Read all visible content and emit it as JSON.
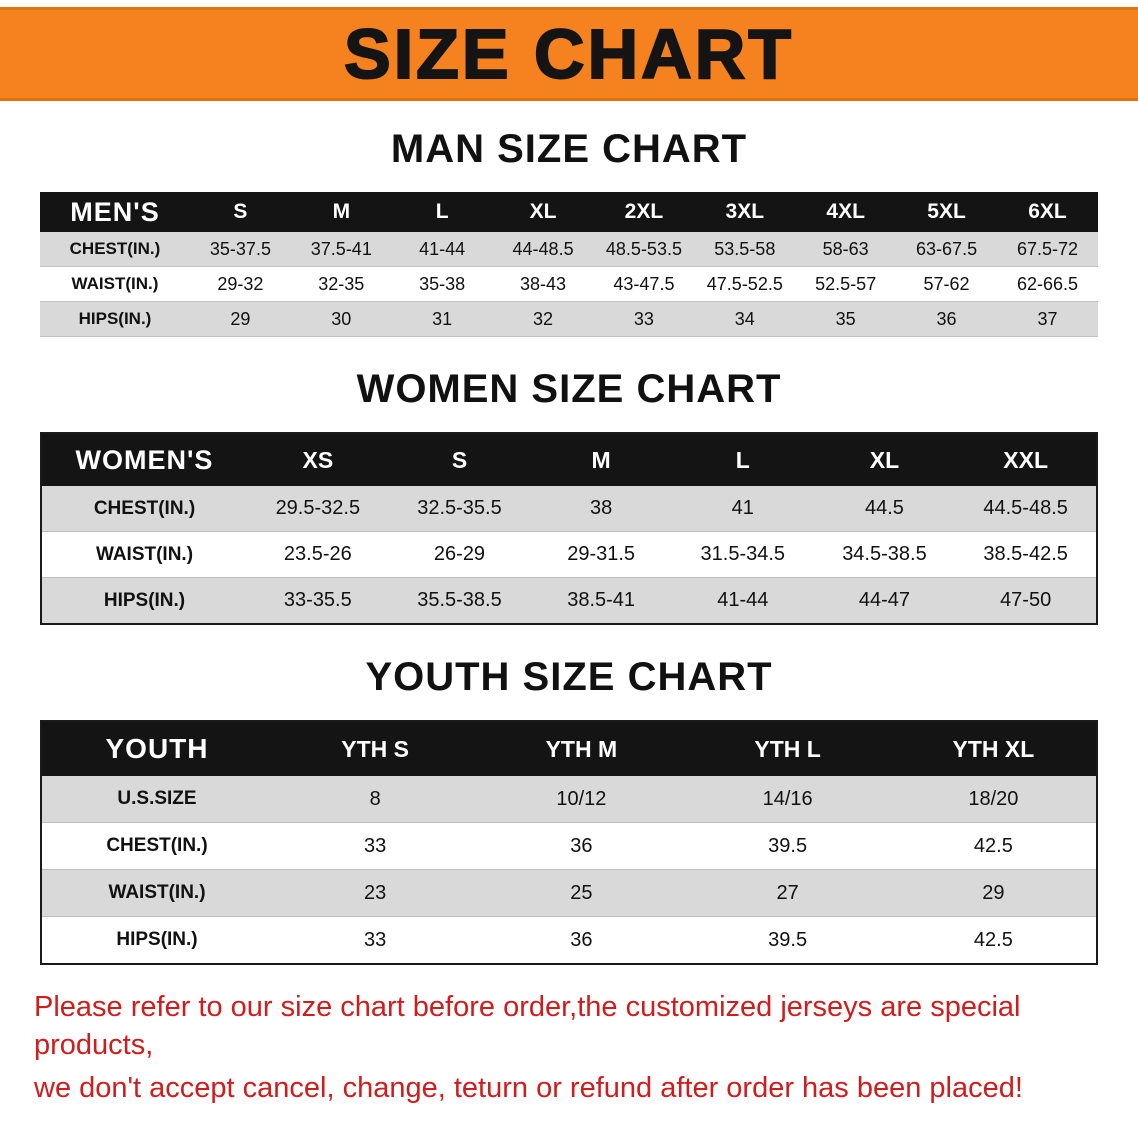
{
  "banner": {
    "title": "SIZE CHART"
  },
  "colors": {
    "banner_bg": "#f5821f",
    "table_header_bg": "#141414",
    "row_gray": "#d9d9d9",
    "notice_red": "#cf1d1d"
  },
  "sections": [
    {
      "heading": "MAN SIZE CHART",
      "table": {
        "corner": "MEN'S",
        "columns": [
          "S",
          "M",
          "L",
          "XL",
          "2XL",
          "3XL",
          "4XL",
          "5XL",
          "6XL"
        ],
        "rows": [
          {
            "label": "CHEST(IN.)",
            "values": [
              "35-37.5",
              "37.5-41",
              "41-44",
              "44-48.5",
              "48.5-53.5",
              "53.5-58",
              "58-63",
              "63-67.5",
              "67.5-72"
            ]
          },
          {
            "label": "WAIST(IN.)",
            "values": [
              "29-32",
              "32-35",
              "35-38",
              "38-43",
              "43-47.5",
              "47.5-52.5",
              "52.5-57",
              "57-62",
              "62-66.5"
            ]
          },
          {
            "label": "HIPS(IN.)",
            "values": [
              "29",
              "30",
              "31",
              "32",
              "33",
              "34",
              "35",
              "36",
              "37"
            ]
          }
        ]
      }
    },
    {
      "heading": "WOMEN SIZE CHART",
      "table": {
        "corner": "WOMEN'S",
        "columns": [
          "XS",
          "S",
          "M",
          "L",
          "XL",
          "XXL"
        ],
        "rows": [
          {
            "label": "CHEST(IN.)",
            "values": [
              "29.5-32.5",
              "32.5-35.5",
              "38",
              "41",
              "44.5",
              "44.5-48.5"
            ]
          },
          {
            "label": "WAIST(IN.)",
            "values": [
              "23.5-26",
              "26-29",
              "29-31.5",
              "31.5-34.5",
              "34.5-38.5",
              "38.5-42.5"
            ]
          },
          {
            "label": "HIPS(IN.)",
            "values": [
              "33-35.5",
              "35.5-38.5",
              "38.5-41",
              "41-44",
              "44-47",
              "47-50"
            ]
          }
        ]
      }
    },
    {
      "heading": "YOUTH SIZE CHART",
      "table": {
        "corner": "YOUTH",
        "columns": [
          "YTH S",
          "YTH M",
          "YTH L",
          "YTH XL"
        ],
        "rows": [
          {
            "label": "U.S.SIZE",
            "values": [
              "8",
              "10/12",
              "14/16",
              "18/20"
            ]
          },
          {
            "label": "CHEST(IN.)",
            "values": [
              "33",
              "36",
              "39.5",
              "42.5"
            ]
          },
          {
            "label": "WAIST(IN.)",
            "values": [
              "23",
              "25",
              "27",
              "29"
            ]
          },
          {
            "label": "HIPS(IN.)",
            "values": [
              "33",
              "36",
              "39.5",
              "42.5"
            ]
          }
        ]
      }
    }
  ],
  "footer": {
    "line1": "Please refer to our size chart before order,the customized jerseys are special products,",
    "line2": "we don't accept cancel, change, teturn or refund after order has been placed!"
  }
}
